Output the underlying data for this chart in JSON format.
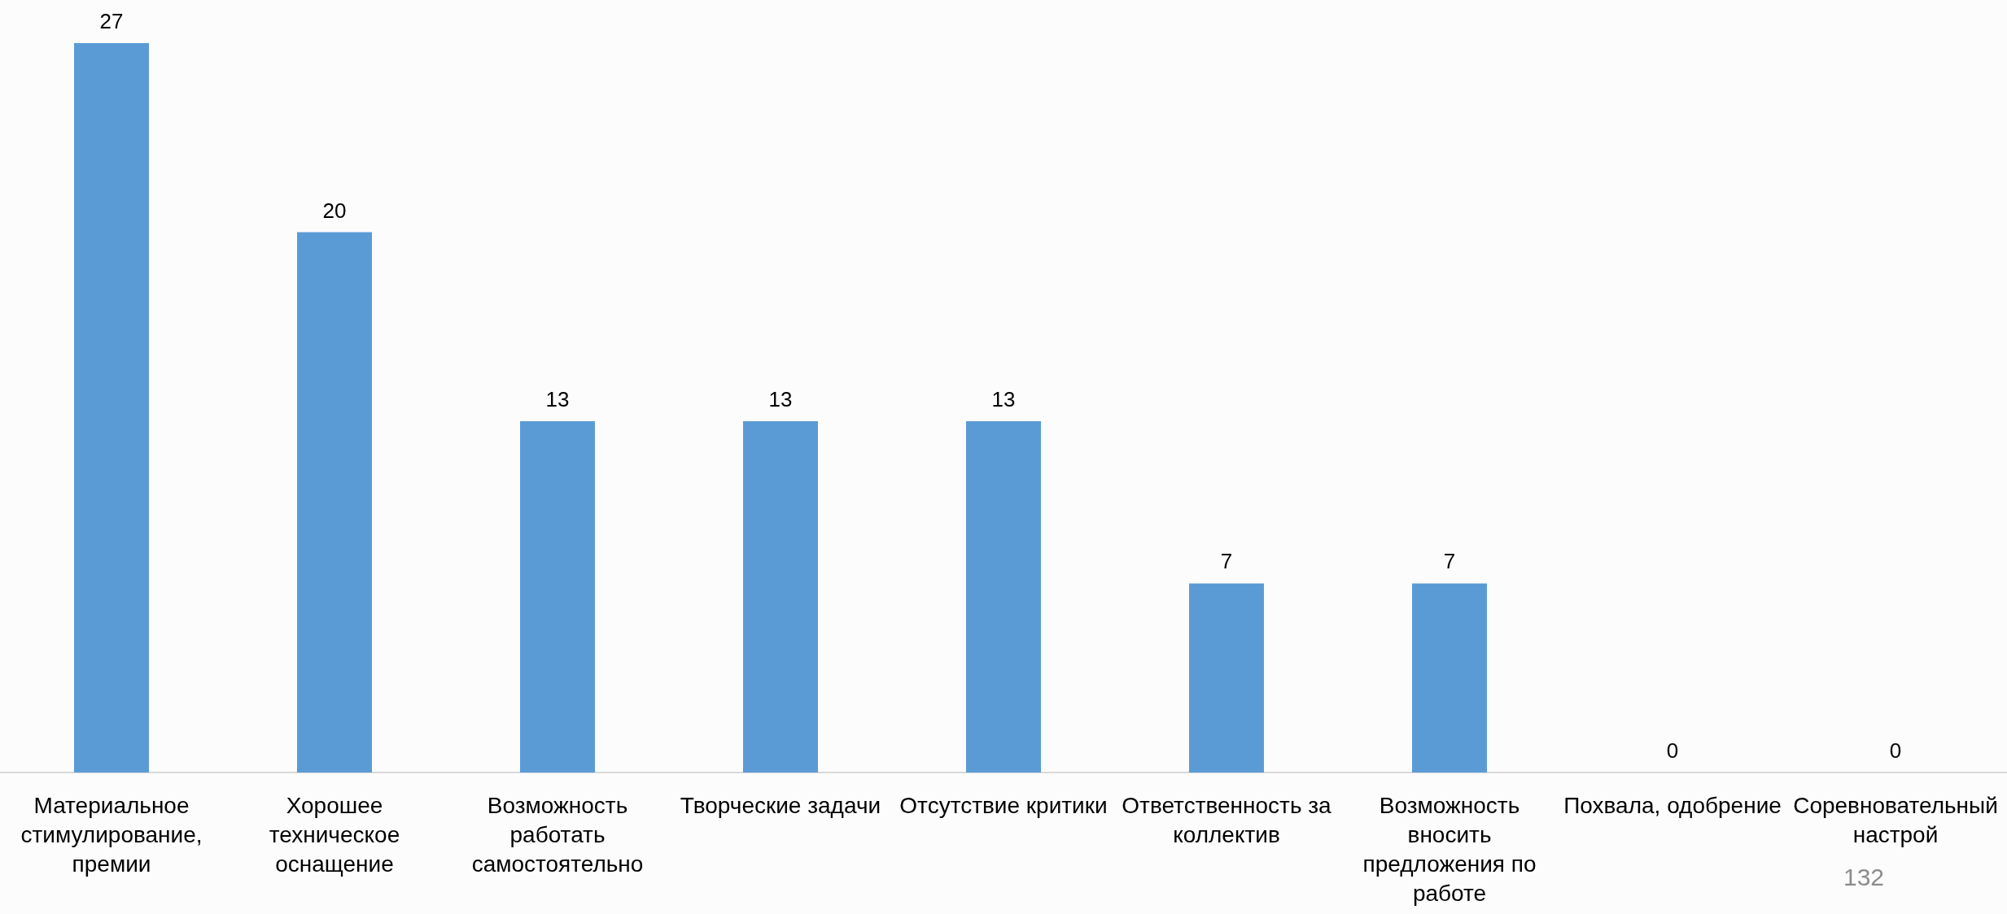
{
  "chart_data": {
    "type": "bar",
    "categories": [
      "Материальное стимулирование, премии",
      "Хорошее техническое оснащение",
      "Возможность работать самостоятельно",
      "Творческие задачи",
      "Отсутствие критики",
      "Ответственность за коллектив",
      "Возможность вносить предложения по работе",
      "Похвала, одобрение",
      "Соревновательный настрой"
    ],
    "values": [
      27,
      20,
      13,
      13,
      13,
      7,
      7,
      0,
      0
    ],
    "color": "#5b9bd5",
    "data_labels": true,
    "grid": false,
    "annotations": [
      "132"
    ]
  }
}
